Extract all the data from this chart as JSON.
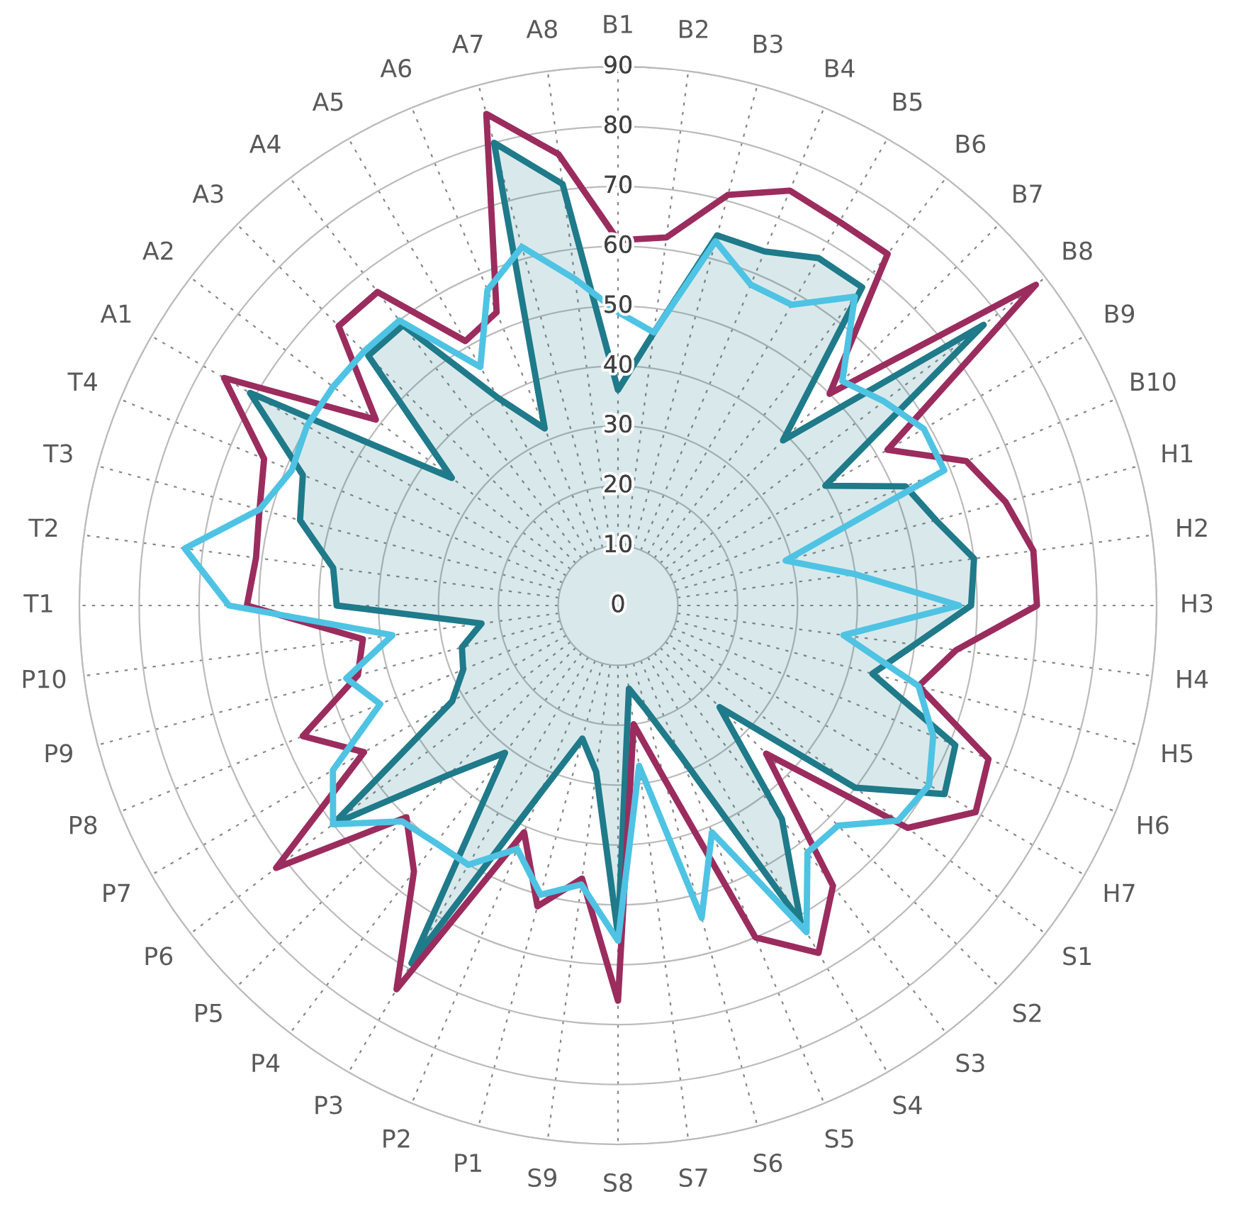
{
  "chart_data": {
    "type": "radar",
    "categories": [
      "B1",
      "B2",
      "B3",
      "B4",
      "B5",
      "B6",
      "B7",
      "B8",
      "B9",
      "B10",
      "H1",
      "H2",
      "H3",
      "H4",
      "H5",
      "H6",
      "H7",
      "S1",
      "S2",
      "S3",
      "S4",
      "S5",
      "S6",
      "S7",
      "S8",
      "S9",
      "P1",
      "P2",
      "P3",
      "P4",
      "P5",
      "P6",
      "P7",
      "P8",
      "P9",
      "P10",
      "T1",
      "T2",
      "T3",
      "T4",
      "A1",
      "A2",
      "A3",
      "A4",
      "A5",
      "A6",
      "A7",
      "A8"
    ],
    "ylim": [
      0,
      90
    ],
    "yticks": [
      0,
      10,
      20,
      30,
      40,
      50,
      60,
      70,
      80,
      90
    ],
    "grid": true,
    "series": [
      {
        "type": "area",
        "color": "#1f7a8a",
        "values": [
          36,
          46,
          64,
          64,
          67,
          67,
          39,
          77,
          40,
          52,
          55,
          60,
          59,
          50,
          44,
          61,
          63,
          50,
          24,
          45,
          61,
          27,
          18,
          14,
          55,
          28,
          23,
          34,
          69,
          31,
          40,
          60,
          32,
          28,
          27,
          23,
          47,
          48,
          55,
          57,
          71,
          35,
          59,
          59,
          40,
          32,
          80,
          71
        ]
      },
      {
        "color": "#9b2c5e",
        "values": [
          61,
          62,
          71,
          75,
          74,
          74,
          50,
          88,
          52,
          63,
          67,
          70,
          70,
          57,
          52,
          67,
          69,
          61,
          35,
          59,
          67,
          60,
          30,
          20,
          66,
          46,
          52,
          41,
          74,
          56,
          50,
          72,
          49,
          57,
          45,
          43,
          62,
          61,
          62,
          64,
          76,
          51,
          66,
          66,
          51,
          53,
          85,
          76
        ]
      },
      {
        "color": "#4fc3e3",
        "values": [
          49,
          46,
          63,
          58,
          58,
          65,
          53,
          56,
          59,
          59,
          29,
          40,
          57,
          38,
          52,
          57,
          60,
          59,
          52,
          52,
          63,
          41,
          54,
          27,
          56,
          47,
          50,
          44,
          50,
          50,
          51,
          60,
          55,
          43,
          47,
          38,
          65,
          73,
          62,
          59,
          60,
          60,
          60,
          60,
          46,
          57,
          62,
          55
        ]
      }
    ]
  }
}
